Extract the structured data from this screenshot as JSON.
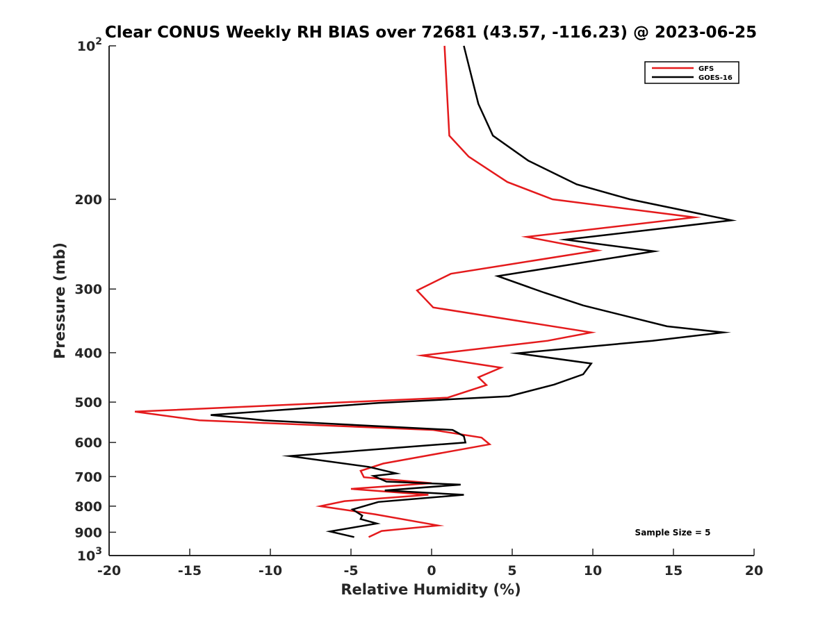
{
  "chart_data": {
    "type": "line",
    "title": "Clear CONUS Weekly RH BIAS over 72681 (43.57, -116.23) @ 2023-06-25",
    "xlabel": "Relative Humidity (%)",
    "ylabel": "Pressure (mb)",
    "xlim": [
      -20,
      20
    ],
    "ylim": [
      100,
      1000
    ],
    "y_scale": "log",
    "y_reversed": true,
    "grid": false,
    "legend_position": "top-right",
    "x_ticks": [
      {
        "value": -20,
        "label": "-20"
      },
      {
        "value": -15,
        "label": "-15"
      },
      {
        "value": -10,
        "label": "-10"
      },
      {
        "value": -5,
        "label": "-5"
      },
      {
        "value": 0,
        "label": "0"
      },
      {
        "value": 5,
        "label": "5"
      },
      {
        "value": 10,
        "label": "10"
      },
      {
        "value": 15,
        "label": "15"
      },
      {
        "value": 20,
        "label": "20"
      }
    ],
    "y_ticks": [
      {
        "value": 100,
        "label": "10",
        "exp": "2"
      },
      {
        "value": 200,
        "label": "200"
      },
      {
        "value": 300,
        "label": "300"
      },
      {
        "value": 400,
        "label": "400"
      },
      {
        "value": 500,
        "label": "500"
      },
      {
        "value": 600,
        "label": "600"
      },
      {
        "value": 700,
        "label": "700"
      },
      {
        "value": 800,
        "label": "800"
      },
      {
        "value": 900,
        "label": "900"
      },
      {
        "value": 1000,
        "label": "10",
        "exp": "3"
      }
    ],
    "annotation": "Sample Size = 5",
    "series": [
      {
        "name": "GFS",
        "color": "#e41a1c",
        "points": [
          [
            0.8,
            100
          ],
          [
            1.1,
            150
          ],
          [
            2.3,
            165
          ],
          [
            4.7,
            185
          ],
          [
            7.5,
            200
          ],
          [
            16.3,
            217
          ],
          [
            5.9,
            237
          ],
          [
            10.3,
            252
          ],
          [
            1.2,
            280
          ],
          [
            -0.9,
            302
          ],
          [
            0.1,
            326
          ],
          [
            9.9,
            365
          ],
          [
            7.2,
            379
          ],
          [
            -0.6,
            405
          ],
          [
            4.3,
            428
          ],
          [
            2.9,
            447
          ],
          [
            3.4,
            463
          ],
          [
            1.0,
            490
          ],
          [
            -18.4,
            522
          ],
          [
            -14.4,
            543
          ],
          [
            0.1,
            567
          ],
          [
            3.1,
            587
          ],
          [
            3.6,
            605
          ],
          [
            -3.0,
            660
          ],
          [
            -4.4,
            682
          ],
          [
            -4.2,
            702
          ],
          [
            0.0,
            721
          ],
          [
            -5.0,
            740
          ],
          [
            -0.2,
            760
          ],
          [
            -5.4,
            782
          ],
          [
            -6.9,
            800
          ],
          [
            -3.5,
            830
          ],
          [
            0.4,
            873
          ],
          [
            -3.1,
            895
          ],
          [
            -3.9,
            920
          ]
        ]
      },
      {
        "name": "GOES-16",
        "color": "#000000",
        "points": [
          [
            2.0,
            100
          ],
          [
            2.9,
            130
          ],
          [
            3.8,
            150
          ],
          [
            6.0,
            168
          ],
          [
            9.0,
            187
          ],
          [
            12.3,
            200
          ],
          [
            18.6,
            220
          ],
          [
            8.3,
            240
          ],
          [
            13.8,
            253
          ],
          [
            4.1,
            283
          ],
          [
            7.0,
            305
          ],
          [
            9.4,
            323
          ],
          [
            14.6,
            355
          ],
          [
            18.1,
            365
          ],
          [
            13.7,
            379
          ],
          [
            5.3,
            401
          ],
          [
            9.9,
            420
          ],
          [
            9.4,
            441
          ],
          [
            7.6,
            462
          ],
          [
            4.8,
            487
          ],
          [
            -3.3,
            502
          ],
          [
            -13.7,
            530
          ],
          [
            -10.4,
            543
          ],
          [
            1.3,
            567
          ],
          [
            2.0,
            583
          ],
          [
            2.1,
            600
          ],
          [
            -8.8,
            638
          ],
          [
            -3.9,
            670
          ],
          [
            -2.2,
            690
          ],
          [
            -3.6,
            698
          ],
          [
            -2.8,
            716
          ],
          [
            1.8,
            726
          ],
          [
            -2.9,
            745
          ],
          [
            2.0,
            760
          ],
          [
            -3.3,
            785
          ],
          [
            -4.9,
            812
          ],
          [
            -4.3,
            835
          ],
          [
            -4.4,
            848
          ],
          [
            -3.4,
            865
          ],
          [
            -6.3,
            897
          ],
          [
            -4.8,
            920
          ]
        ]
      }
    ]
  }
}
